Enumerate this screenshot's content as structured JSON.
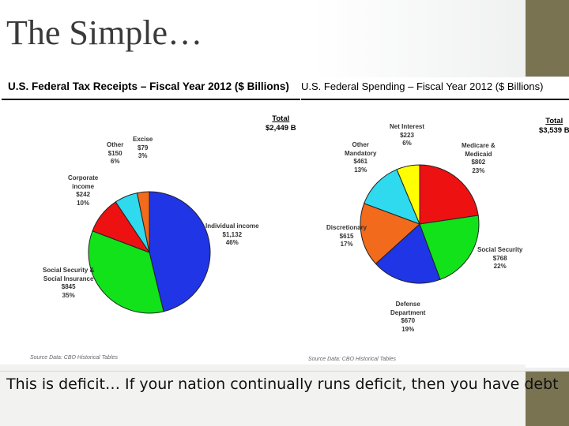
{
  "slide": {
    "title": "The Simple…",
    "caption": "This is deficit… If your nation continually runs deficit, then you have debt"
  },
  "colors": {
    "sidebar": "#7a7352",
    "blue": "#1f35e6",
    "green": "#12e21a",
    "red": "#ee1111",
    "cyan": "#2fd9ee",
    "orange": "#f26a1b",
    "yellow": "#ffff00"
  },
  "chart_data": [
    {
      "type": "pie",
      "title": "U.S. Federal Tax Receipts – Fiscal Year 2012 ($ Billions)",
      "total_label": "Total",
      "total_value": "$2,449 B",
      "source": "Source Data: CBO Historical Tables",
      "slices": [
        {
          "name": "Individual income",
          "value": 1132,
          "value_label": "$1,132",
          "percent": "46%",
          "color": "#1f35e6"
        },
        {
          "name": "Social Security & Social Insurance",
          "value": 845,
          "value_label": "$845",
          "percent": "35%",
          "color": "#12e21a"
        },
        {
          "name": "Corporate income",
          "value": 242,
          "value_label": "$242",
          "percent": "10%",
          "color": "#ee1111"
        },
        {
          "name": "Other",
          "value": 150,
          "value_label": "$150",
          "percent": "6%",
          "color": "#2fd9ee"
        },
        {
          "name": "Excise",
          "value": 79,
          "value_label": "$79",
          "percent": "3%",
          "color": "#f26a1b"
        }
      ]
    },
    {
      "type": "pie",
      "title": "U.S. Federal Spending – Fiscal Year 2012 ($ Billions)",
      "total_label": "Total",
      "total_value": "$3,539 B",
      "source": "Source Data: CBO Historical Tables",
      "slices": [
        {
          "name": "Medicare & Medicaid",
          "value": 802,
          "value_label": "$802",
          "percent": "23%",
          "color": "#ee1111"
        },
        {
          "name": "Social Security",
          "value": 768,
          "value_label": "$768",
          "percent": "22%",
          "color": "#12e21a"
        },
        {
          "name": "Defense Department",
          "value": 670,
          "value_label": "$670",
          "percent": "19%",
          "color": "#1f35e6"
        },
        {
          "name": "Discretionary",
          "value": 615,
          "value_label": "$615",
          "percent": "17%",
          "color": "#f26a1b"
        },
        {
          "name": "Other Mandatory",
          "value": 461,
          "value_label": "$461",
          "percent": "13%",
          "color": "#2fd9ee"
        },
        {
          "name": "Net Interest",
          "value": 223,
          "value_label": "$223",
          "percent": "6%",
          "color": "#ffff00"
        }
      ]
    }
  ]
}
